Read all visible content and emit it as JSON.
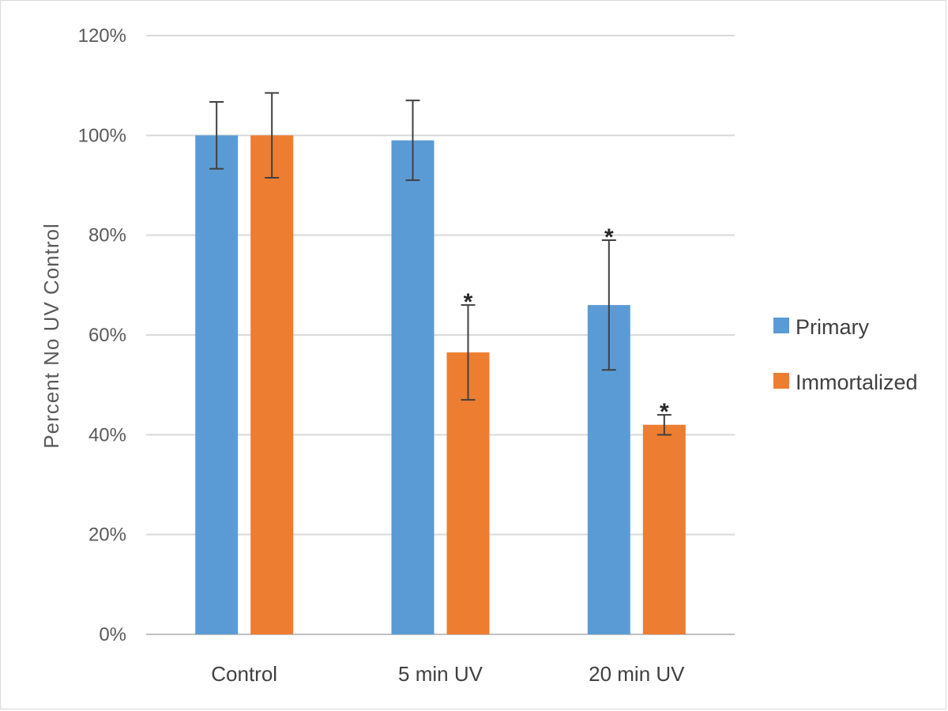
{
  "chart_data": {
    "type": "bar",
    "title": "",
    "xlabel": "",
    "ylabel": "Percent No UV Control",
    "ylim": [
      0,
      1.2
    ],
    "ytick_values": [
      0,
      0.2,
      0.4,
      0.6,
      0.8,
      1.0,
      1.2
    ],
    "ytick_labels": [
      "0%",
      "20%",
      "40%",
      "60%",
      "80%",
      "100%",
      "120%"
    ],
    "grid": true,
    "legend_position": "right",
    "categories": [
      "Control",
      "5 min UV",
      "20 min UV"
    ],
    "series": [
      {
        "name": "Primary",
        "color": "#5b9bd5",
        "values": [
          1.0,
          0.99,
          0.66
        ],
        "error": [
          0.067,
          0.08,
          0.13
        ],
        "significant": [
          false,
          false,
          true
        ]
      },
      {
        "name": "Immortalized",
        "color": "#ed7d31",
        "values": [
          1.0,
          0.565,
          0.42
        ],
        "error": [
          0.085,
          0.095,
          0.02
        ],
        "significant": [
          false,
          true,
          true
        ]
      }
    ],
    "significance_marker": "*"
  }
}
